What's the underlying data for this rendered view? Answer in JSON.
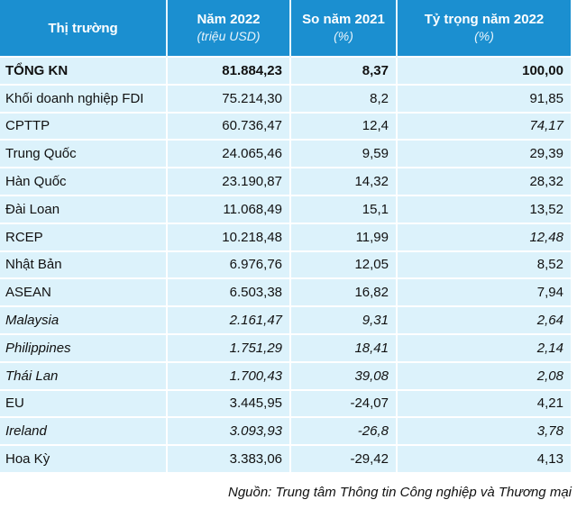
{
  "header": {
    "market": "Thị trường",
    "year2022": "Năm 2022",
    "year2022_unit": "(triệu USD)",
    "vs2021": "So năm 2021",
    "vs2021_unit": "(%)",
    "share2022": "Tỷ trọng năm 2022",
    "share2022_unit": "(%)"
  },
  "rows": [
    {
      "market": "TỔNG KN",
      "value": "81.884,23",
      "change": "8,37",
      "share": "100,00",
      "style": "bold"
    },
    {
      "market": "Khối doanh nghiệp FDI",
      "value": "75.214,30",
      "change": "8,2",
      "share": "91,85",
      "style": ""
    },
    {
      "market": "CPTTP",
      "value": "60.736,47",
      "change": "12,4",
      "share": "74,17",
      "style": "share-italic"
    },
    {
      "market": "Trung Quốc",
      "value": "24.065,46",
      "change": "9,59",
      "share": "29,39",
      "style": ""
    },
    {
      "market": "Hàn Quốc",
      "value": "23.190,87",
      "change": "14,32",
      "share": "28,32",
      "style": ""
    },
    {
      "market": "Đài Loan",
      "value": "11.068,49",
      "change": "15,1",
      "share": "13,52",
      "style": ""
    },
    {
      "market": "RCEP",
      "value": "10.218,48",
      "change": "11,99",
      "share": "12,48",
      "style": "share-italic"
    },
    {
      "market": "Nhật Bản",
      "value": "6.976,76",
      "change": "12,05",
      "share": "8,52",
      "style": ""
    },
    {
      "market": "ASEAN",
      "value": "6.503,38",
      "change": "16,82",
      "share": "7,94",
      "style": ""
    },
    {
      "market": "Malaysia",
      "value": "2.161,47",
      "change": "9,31",
      "share": "2,64",
      "style": "italic"
    },
    {
      "market": "Philippines",
      "value": "1.751,29",
      "change": "18,41",
      "share": "2,14",
      "style": "italic"
    },
    {
      "market": "Thái Lan",
      "value": "1.700,43",
      "change": "39,08",
      "share": "2,08",
      "style": "italic"
    },
    {
      "market": "EU",
      "value": "3.445,95",
      "change": "-24,07",
      "share": "4,21",
      "style": ""
    },
    {
      "market": "Ireland",
      "value": "3.093,93",
      "change": "-26,8",
      "share": "3,78",
      "style": "italic"
    },
    {
      "market": "Hoa Kỳ",
      "value": "3.383,06",
      "change": "-29,42",
      "share": "4,13",
      "style": ""
    }
  ],
  "source": "Nguồn: Trung tâm Thông tin Công nghiệp và Thương mại",
  "colors": {
    "header_bg": "#1b8fd0",
    "row_bg": "#dcf2fb"
  }
}
